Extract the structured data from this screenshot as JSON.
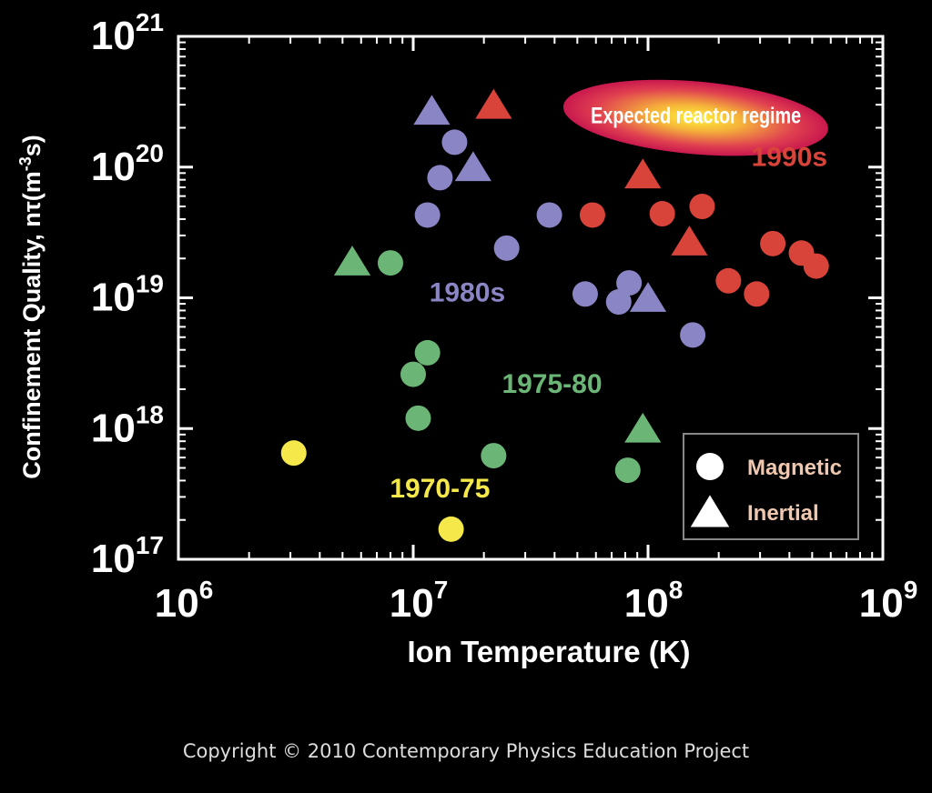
{
  "copyright": "Copyright © 2010 Contemporary Physics Education Project",
  "chart_data": {
    "type": "scatter",
    "xlabel": "Ion Temperature (K)",
    "ylabel": "Confinement Quality, nτ(m",
    "ylabel_sup": "-3",
    "ylabel_end": "s)",
    "x_scale": "log",
    "y_scale": "log",
    "xlim": [
      1000000.0,
      1000000000.0
    ],
    "ylim": [
      1e+17,
      1e+21
    ],
    "x_ticks": [
      {
        "value": 1000000.0,
        "base": "10",
        "exp": "6"
      },
      {
        "value": 10000000.0,
        "base": "10",
        "exp": "7"
      },
      {
        "value": 100000000.0,
        "base": "10",
        "exp": "8"
      },
      {
        "value": 1000000000.0,
        "base": "10",
        "exp": "9"
      }
    ],
    "y_ticks": [
      {
        "value": 1e+17,
        "base": "10",
        "exp": "17"
      },
      {
        "value": 1e+18,
        "base": "10",
        "exp": "18"
      },
      {
        "value": 1e+19,
        "base": "10",
        "exp": "19"
      },
      {
        "value": 1e+20,
        "base": "10",
        "exp": "20"
      },
      {
        "value": 1e+21,
        "base": "10",
        "exp": "21"
      }
    ],
    "grid": false,
    "legend": {
      "position": "bottom-right",
      "items": [
        {
          "label": "Magnetic",
          "marker": "circle"
        },
        {
          "label": "Inertial",
          "marker": "triangle"
        }
      ]
    },
    "region": {
      "label": "Expected reactor regime",
      "x_center": 160000000.0,
      "y_center": 2.5e+20
    },
    "series": [
      {
        "name": "1970-75",
        "color": "#f5e84a",
        "label_pos": {
          "x": 13000000.0,
          "y": 3.5e+17
        },
        "points": [
          {
            "x": 3100000.0,
            "y": 6.5e+17,
            "marker": "circle"
          },
          {
            "x": 14500000.0,
            "y": 1.7e+17,
            "marker": "circle"
          }
        ]
      },
      {
        "name": "1975-80",
        "color": "#6bb577",
        "label_pos": {
          "x": 39000000.0,
          "y": 2.2e+18
        },
        "points": [
          {
            "x": 5500000.0,
            "y": 1.9e+19,
            "marker": "triangle"
          },
          {
            "x": 8000000.0,
            "y": 1.85e+19,
            "marker": "circle"
          },
          {
            "x": 11500000.0,
            "y": 3.8e+18,
            "marker": "circle"
          },
          {
            "x": 10000000.0,
            "y": 2.6e+18,
            "marker": "circle"
          },
          {
            "x": 10500000.0,
            "y": 1.2e+18,
            "marker": "circle"
          },
          {
            "x": 22000000.0,
            "y": 6.2e+17,
            "marker": "circle"
          },
          {
            "x": 82000000.0,
            "y": 4.8e+17,
            "marker": "circle"
          },
          {
            "x": 95000000.0,
            "y": 1e+18,
            "marker": "triangle"
          }
        ]
      },
      {
        "name": "1980s",
        "color": "#8a85c4",
        "label_pos": {
          "x": 17000000.0,
          "y": 1.1e+19
        },
        "points": [
          {
            "x": 12000000.0,
            "y": 2.7e+20,
            "marker": "triangle"
          },
          {
            "x": 15000000.0,
            "y": 1.55e+20,
            "marker": "circle"
          },
          {
            "x": 13000000.0,
            "y": 8.3e+19,
            "marker": "circle"
          },
          {
            "x": 18000000.0,
            "y": 1e+20,
            "marker": "triangle"
          },
          {
            "x": 11500000.0,
            "y": 4.3e+19,
            "marker": "circle"
          },
          {
            "x": 25000000.0,
            "y": 2.4e+19,
            "marker": "circle"
          },
          {
            "x": 38000000.0,
            "y": 4.3e+19,
            "marker": "circle"
          },
          {
            "x": 54000000.0,
            "y": 1.07e+19,
            "marker": "circle"
          },
          {
            "x": 75000000.0,
            "y": 9.3e+18,
            "marker": "circle"
          },
          {
            "x": 83000000.0,
            "y": 1.3e+19,
            "marker": "circle"
          },
          {
            "x": 100000000.0,
            "y": 1e+19,
            "marker": "triangle"
          },
          {
            "x": 155000000.0,
            "y": 5.2e+18,
            "marker": "circle"
          }
        ]
      },
      {
        "name": "1990s",
        "color": "#d9443a",
        "label_pos": {
          "x": 400000000.0,
          "y": 1.2e+20
        },
        "points": [
          {
            "x": 22000000.0,
            "y": 3e+20,
            "marker": "triangle"
          },
          {
            "x": 58000000.0,
            "y": 4.3e+19,
            "marker": "circle"
          },
          {
            "x": 95000000.0,
            "y": 8.8e+19,
            "marker": "triangle"
          },
          {
            "x": 115000000.0,
            "y": 4.4e+19,
            "marker": "circle"
          },
          {
            "x": 150000000.0,
            "y": 2.7e+19,
            "marker": "triangle"
          },
          {
            "x": 170000000.0,
            "y": 5e+19,
            "marker": "circle"
          },
          {
            "x": 220000000.0,
            "y": 1.35e+19,
            "marker": "circle"
          },
          {
            "x": 290000000.0,
            "y": 1.07e+19,
            "marker": "circle"
          },
          {
            "x": 340000000.0,
            "y": 2.6e+19,
            "marker": "circle"
          },
          {
            "x": 450000000.0,
            "y": 2.2e+19,
            "marker": "circle"
          },
          {
            "x": 520000000.0,
            "y": 1.75e+19,
            "marker": "circle"
          }
        ]
      }
    ]
  }
}
